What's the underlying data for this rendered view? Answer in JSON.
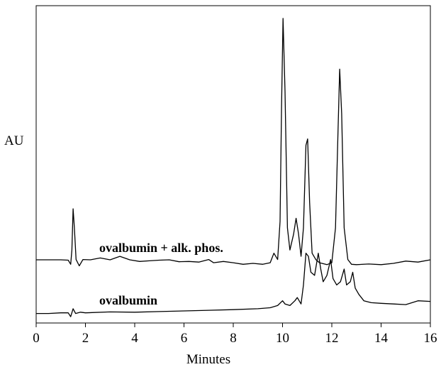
{
  "chart_data": {
    "type": "line",
    "title": "",
    "xlabel": "Minutes",
    "ylabel": "AU",
    "xlim": [
      0,
      16
    ],
    "ylim": [
      0,
      1.0
    ],
    "x_ticks": [
      0,
      2,
      4,
      6,
      8,
      10,
      12,
      14,
      16
    ],
    "y_ticks": [],
    "grid": false,
    "legend": "none",
    "line_color": "#000000",
    "annotations": [
      "ovalbumin + alk. phos.",
      "ovalbumin"
    ],
    "series": [
      {
        "label": "ovalbumin + alk. phos.",
        "points": [
          [
            0,
            0.199
          ],
          [
            0.5,
            0.199
          ],
          [
            1.0,
            0.199
          ],
          [
            1.3,
            0.198
          ],
          [
            1.4,
            0.185
          ],
          [
            1.45,
            0.23
          ],
          [
            1.5,
            0.36
          ],
          [
            1.55,
            0.3
          ],
          [
            1.62,
            0.2
          ],
          [
            1.75,
            0.18
          ],
          [
            1.9,
            0.2
          ],
          [
            2.2,
            0.199
          ],
          [
            2.6,
            0.205
          ],
          [
            3.0,
            0.199
          ],
          [
            3.4,
            0.21
          ],
          [
            3.8,
            0.199
          ],
          [
            4.2,
            0.194
          ],
          [
            4.6,
            0.196
          ],
          [
            5.0,
            0.198
          ],
          [
            5.4,
            0.199
          ],
          [
            5.8,
            0.193
          ],
          [
            6.2,
            0.194
          ],
          [
            6.6,
            0.192
          ],
          [
            7.0,
            0.2
          ],
          [
            7.2,
            0.19
          ],
          [
            7.6,
            0.194
          ],
          [
            8.0,
            0.19
          ],
          [
            8.4,
            0.185
          ],
          [
            8.8,
            0.188
          ],
          [
            9.2,
            0.185
          ],
          [
            9.5,
            0.19
          ],
          [
            9.65,
            0.22
          ],
          [
            9.8,
            0.2
          ],
          [
            9.9,
            0.32
          ],
          [
            9.96,
            0.68
          ],
          [
            10.02,
            0.96
          ],
          [
            10.1,
            0.73
          ],
          [
            10.2,
            0.3
          ],
          [
            10.3,
            0.23
          ],
          [
            10.45,
            0.28
          ],
          [
            10.55,
            0.33
          ],
          [
            10.65,
            0.28
          ],
          [
            10.75,
            0.21
          ],
          [
            10.85,
            0.3
          ],
          [
            10.95,
            0.56
          ],
          [
            11.02,
            0.58
          ],
          [
            11.1,
            0.38
          ],
          [
            11.2,
            0.22
          ],
          [
            11.35,
            0.2
          ],
          [
            11.5,
            0.19
          ],
          [
            11.8,
            0.184
          ],
          [
            12.0,
            0.19
          ],
          [
            12.15,
            0.3
          ],
          [
            12.25,
            0.6
          ],
          [
            12.32,
            0.8
          ],
          [
            12.4,
            0.66
          ],
          [
            12.5,
            0.3
          ],
          [
            12.65,
            0.2
          ],
          [
            12.8,
            0.185
          ],
          [
            13.0,
            0.184
          ],
          [
            13.5,
            0.186
          ],
          [
            14.0,
            0.184
          ],
          [
            14.5,
            0.188
          ],
          [
            15.0,
            0.195
          ],
          [
            15.5,
            0.192
          ],
          [
            16.0,
            0.199
          ]
        ]
      },
      {
        "label": "ovalbumin",
        "points": [
          [
            0,
            0.03
          ],
          [
            0.5,
            0.03
          ],
          [
            1.0,
            0.032
          ],
          [
            1.3,
            0.032
          ],
          [
            1.4,
            0.02
          ],
          [
            1.5,
            0.045
          ],
          [
            1.6,
            0.03
          ],
          [
            1.8,
            0.034
          ],
          [
            2.0,
            0.032
          ],
          [
            3.0,
            0.035
          ],
          [
            4.0,
            0.034
          ],
          [
            5.0,
            0.036
          ],
          [
            6.0,
            0.038
          ],
          [
            7.0,
            0.04
          ],
          [
            8.0,
            0.042
          ],
          [
            9.0,
            0.045
          ],
          [
            9.5,
            0.048
          ],
          [
            9.8,
            0.055
          ],
          [
            10.0,
            0.07
          ],
          [
            10.1,
            0.06
          ],
          [
            10.3,
            0.055
          ],
          [
            10.5,
            0.07
          ],
          [
            10.6,
            0.08
          ],
          [
            10.75,
            0.06
          ],
          [
            10.85,
            0.12
          ],
          [
            10.95,
            0.22
          ],
          [
            11.05,
            0.21
          ],
          [
            11.15,
            0.16
          ],
          [
            11.3,
            0.15
          ],
          [
            11.45,
            0.22
          ],
          [
            11.55,
            0.17
          ],
          [
            11.65,
            0.13
          ],
          [
            11.8,
            0.15
          ],
          [
            11.95,
            0.2
          ],
          [
            12.05,
            0.14
          ],
          [
            12.2,
            0.12
          ],
          [
            12.35,
            0.13
          ],
          [
            12.5,
            0.17
          ],
          [
            12.6,
            0.12
          ],
          [
            12.75,
            0.13
          ],
          [
            12.85,
            0.16
          ],
          [
            12.95,
            0.11
          ],
          [
            13.1,
            0.09
          ],
          [
            13.3,
            0.07
          ],
          [
            13.6,
            0.064
          ],
          [
            14.0,
            0.062
          ],
          [
            14.5,
            0.06
          ],
          [
            15.0,
            0.058
          ],
          [
            15.5,
            0.07
          ],
          [
            16.0,
            0.068
          ]
        ]
      }
    ]
  }
}
